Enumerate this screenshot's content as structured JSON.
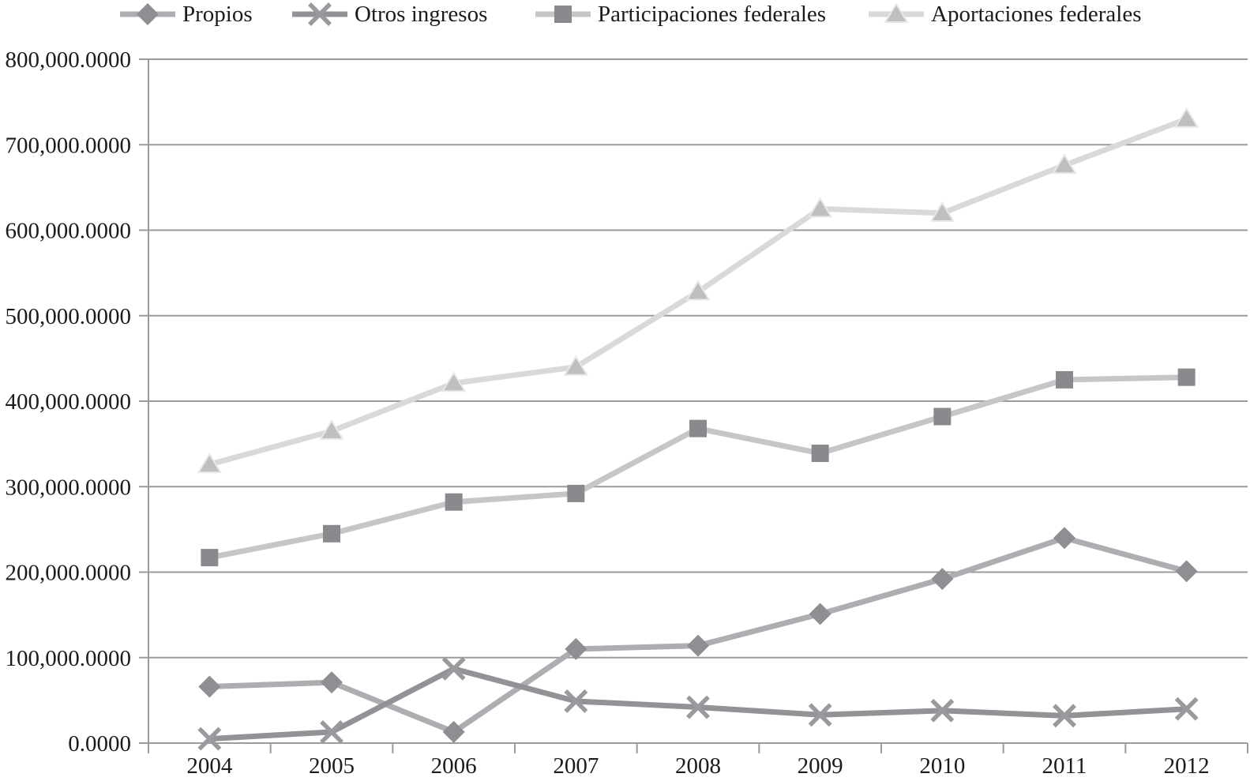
{
  "chart_data": {
    "type": "line",
    "title": "",
    "xlabel": "",
    "ylabel": "",
    "categories": [
      "2004",
      "2005",
      "2006",
      "2007",
      "2008",
      "2009",
      "2010",
      "2011",
      "2012"
    ],
    "series": [
      {
        "name": "Propios",
        "marker": "diamond",
        "line_color": "#aeaeb2",
        "marker_color": "#8f8f93",
        "values": [
          66000,
          71000,
          13000,
          110000,
          114000,
          151000,
          192000,
          240000,
          201000
        ]
      },
      {
        "name": "Otros ingresos",
        "marker": "x",
        "line_color": "#939397",
        "marker_color": "#9a9a9e",
        "values": [
          5000,
          13000,
          87000,
          49000,
          42000,
          33000,
          38000,
          32000,
          40000
        ]
      },
      {
        "name": "Participaciones federales",
        "marker": "square",
        "line_color": "#c6c6c8",
        "marker_color": "#8a8a8e",
        "values": [
          217000,
          245000,
          282000,
          292000,
          368000,
          339000,
          382000,
          425000,
          428000
        ]
      },
      {
        "name": "Aportaciones federales",
        "marker": "triangle",
        "line_color": "#d9d9db",
        "marker_color": "#bfbfc1",
        "marker_outline": "#e8e8ea",
        "values": [
          326000,
          365000,
          421000,
          440000,
          528000,
          625000,
          620000,
          676000,
          730000
        ]
      }
    ],
    "ylim": [
      0,
      800000
    ],
    "ytick_step": 100000,
    "ytick_labels": [
      "0.0000",
      "100,000.0000",
      "200,000.0000",
      "300,000.0000",
      "400,000.0000",
      "500,000.0000",
      "600,000.0000",
      "700,000.0000",
      "800,000.0000"
    ],
    "grid": "horizontal",
    "legend_position": "top",
    "colors": {
      "grid": "#9b9b9b",
      "axis": "#9b9b9b",
      "text": "#1b1b1b",
      "background": "#ffffff"
    }
  }
}
